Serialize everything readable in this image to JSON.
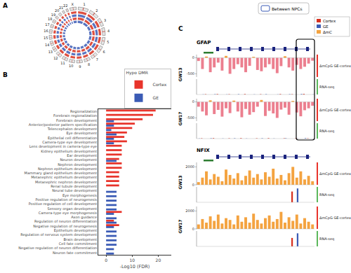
{
  "panel_labels": [
    "A",
    "B",
    "C"
  ],
  "panel_a": {
    "chromosomes": [
      "1",
      "2",
      "3",
      "4",
      "5",
      "6",
      "7",
      "8",
      "9",
      "10",
      "11",
      "12",
      "13",
      "14",
      "15",
      "16",
      "17",
      "18",
      "19",
      "20",
      "21",
      "22",
      "X"
    ],
    "sizes_mb": [
      249,
      243,
      198,
      191,
      181,
      171,
      159,
      146,
      141,
      135,
      135,
      133,
      115,
      107,
      102,
      90,
      81,
      78,
      59,
      63,
      48,
      51,
      155
    ],
    "ring_colors": [
      "#d7301f",
      "#3b5bb5",
      "#d7301f",
      "#3b5bb5"
    ]
  },
  "chart_data": {
    "type": "bar",
    "orientation": "horizontal",
    "categories": [
      "Regionalization",
      "Forebrain regionalization",
      "Forebrain development",
      "Anterior/posterior pattern specification",
      "Telencephalon development",
      "Eye development",
      "Epithelial cell differentiation",
      "Camera-type eye development",
      "Lens development in camera-type eye",
      "Kidney epithelium development",
      "Ear development",
      "Neuron development",
      "Nephron development",
      "Nephron epithelium development",
      "Mammary gland epithelium development",
      "Metanephric epithelium development",
      "Metanephric nephron development",
      "Renal tubule development",
      "Neural tube development",
      "Eye morphogenesis",
      "Positive regulation of neurogenesis",
      "Positive regulation of cell development",
      "Sensory organ development",
      "Camera-type eye morphogenesis",
      "Axon guidance",
      "Regulation of neuron differentiation",
      "Negative regulation of neurogenesis",
      "Epithelium development",
      "Regulation of nervous system development",
      "Brain development",
      "Cell fate commitment",
      "Negative regulation of neuron differentiation",
      "Neuron fate commitment"
    ],
    "series": [
      {
        "name": "Cortex",
        "color": "#e8342b",
        "values": [
          19,
          18,
          14,
          11,
          10,
          8,
          7,
          8,
          6,
          6,
          6,
          5,
          6,
          6,
          5,
          5,
          5,
          5,
          null,
          null,
          null,
          null,
          null,
          6,
          null,
          3,
          5,
          null,
          null,
          null,
          null,
          null,
          null
        ]
      },
      {
        "name": "GE",
        "color": "#3b5bb5",
        "values": [
          null,
          null,
          3,
          3,
          2,
          4,
          3,
          3,
          null,
          null,
          null,
          4,
          null,
          null,
          null,
          null,
          null,
          null,
          4,
          4,
          4,
          4,
          4,
          3,
          4,
          4,
          3,
          4,
          4,
          4,
          4,
          3,
          3
        ]
      }
    ],
    "xlabel": "-Log10 (FDR)",
    "xlim": [
      -3,
      25
    ],
    "xticks": [
      0,
      10,
      20
    ],
    "legend": "top-right",
    "legend_title": "Hypo DMR"
  },
  "panel_c": {
    "box_legend": "Between NPCs",
    "color_legend": [
      {
        "label": "Cortex",
        "color": "#d7301f"
      },
      {
        "label": "GE",
        "color": "#3b5bb5"
      },
      {
        "label": "ΔmC",
        "color": "#f4a340"
      }
    ],
    "sections": [
      {
        "gene": "GFAP",
        "highlight": true,
        "groups": [
          {
            "label": "GW13",
            "tracks": [
              {
                "label": "ΔmCpG GE-cortex",
                "kind": "methylation",
                "label_color": "#e8342b",
                "positive_color": "#f4a340",
                "negative_color": "#ec7f8f",
                "ylim": [
                  -600,
                  100
                ],
                "yticks": [
                  -500,
                  0
                ],
                "values": [
                  -100,
                  -350,
                  40,
                  -450,
                  -300,
                  -150,
                  -400,
                  60,
                  -500,
                  -350,
                  -200,
                  -300,
                  -450,
                  -250,
                  30,
                  -380,
                  -420,
                  -300,
                  -200,
                  -350,
                  -480,
                  -260,
                  50,
                  -300,
                  -400,
                  -220,
                  -350,
                  -280,
                  -180,
                  -90
                ]
              },
              {
                "label": "RNA-seq",
                "kind": "rna",
                "label_color": "#5cb85c",
                "ylim": [
                  0,
                  100
                ],
                "series": [
                  {
                    "color": "#d7301f",
                    "values": [
                      0,
                      0,
                      2,
                      0,
                      0,
                      3,
                      0,
                      0,
                      2,
                      0,
                      0,
                      0,
                      3,
                      0,
                      0,
                      0,
                      2,
                      0,
                      0,
                      0,
                      0,
                      3,
                      0,
                      0,
                      2,
                      0,
                      0,
                      4,
                      0,
                      0
                    ]
                  },
                  {
                    "color": "#3b5bb5",
                    "values": [
                      0,
                      1,
                      0,
                      0,
                      2,
                      0,
                      0,
                      1,
                      0,
                      0,
                      2,
                      0,
                      0,
                      0,
                      1,
                      0,
                      0,
                      2,
                      0,
                      0,
                      1,
                      0,
                      0,
                      2,
                      0,
                      0,
                      3,
                      0,
                      0,
                      1
                    ]
                  }
                ]
              }
            ]
          },
          {
            "label": "GW17",
            "tracks": [
              {
                "label": "ΔmCpG GE-cortex",
                "kind": "methylation",
                "label_color": "#e8342b",
                "positive_color": "#f4a340",
                "negative_color": "#ec7f8f",
                "ylim": [
                  -600,
                  100
                ],
                "yticks": [
                  -500,
                  0
                ],
                "values": [
                  -150,
                  -300,
                  -420,
                  50,
                  -380,
                  -250,
                  -460,
                  -200,
                  -350,
                  40,
                  -300,
                  -480,
                  -220,
                  -400,
                  -320,
                  -150,
                  60,
                  -440,
                  -280,
                  -360,
                  -500,
                  -240,
                  -180,
                  -400,
                  30,
                  -330,
                  -450,
                  -260,
                  -200,
                  -120
                ]
              },
              {
                "label": "RNA-seq",
                "kind": "rna",
                "label_color": "#5cb85c",
                "ylim": [
                  0,
                  100
                ],
                "series": [
                  {
                    "color": "#d7301f",
                    "values": [
                      0,
                      2,
                      0,
                      0,
                      3,
                      0,
                      0,
                      0,
                      2,
                      0,
                      0,
                      3,
                      0,
                      0,
                      0,
                      2,
                      0,
                      0,
                      3,
                      0,
                      0,
                      0,
                      2,
                      0,
                      0,
                      3,
                      0,
                      0,
                      2,
                      0
                    ]
                  },
                  {
                    "color": "#3b5bb5",
                    "values": [
                      1,
                      0,
                      0,
                      2,
                      0,
                      0,
                      1,
                      0,
                      0,
                      2,
                      0,
                      0,
                      1,
                      0,
                      0,
                      0,
                      2,
                      0,
                      0,
                      1,
                      0,
                      0,
                      2,
                      0,
                      0,
                      1,
                      0,
                      3,
                      0,
                      0
                    ]
                  }
                ]
              }
            ]
          }
        ]
      },
      {
        "gene": "NFIX",
        "highlight": false,
        "groups": [
          {
            "label": "GW13",
            "tracks": [
              {
                "label": "ΔmCpG GE-cortex",
                "kind": "methylation",
                "label_color": "#e8342b",
                "positive_color": "#f4a340",
                "negative_color": "#ec7f8f",
                "ylim": [
                  0,
                  2500
                ],
                "yticks": [
                  0,
                  2000
                ],
                "values": [
                  300,
                  800,
                  1500,
                  600,
                  1200,
                  900,
                  400,
                  1700,
                  1100,
                  700,
                  1300,
                  500,
                  1000,
                  1600,
                  800,
                  1200,
                  600,
                  1400,
                  900,
                  1800,
                  700,
                  1100,
                  500,
                  1300,
                  2000,
                  800,
                  1500,
                  600,
                  1000,
                  400
                ]
              },
              {
                "label": "RNA-seq",
                "kind": "rna",
                "label_color": "#5cb85c",
                "ylim": [
                  0,
                  100
                ],
                "series": [
                  {
                    "color": "#d7301f",
                    "values": [
                      0,
                      0,
                      0,
                      0,
                      0,
                      0,
                      0,
                      0,
                      0,
                      0,
                      0,
                      0,
                      0,
                      0,
                      0,
                      0,
                      0,
                      0,
                      0,
                      0,
                      0,
                      0,
                      0,
                      0,
                      70,
                      0,
                      0,
                      0,
                      0,
                      0
                    ]
                  },
                  {
                    "color": "#3b5bb5",
                    "values": [
                      0,
                      0,
                      0,
                      0,
                      0,
                      0,
                      0,
                      0,
                      0,
                      0,
                      0,
                      0,
                      0,
                      0,
                      0,
                      0,
                      0,
                      0,
                      0,
                      0,
                      0,
                      0,
                      0,
                      0,
                      0,
                      90,
                      0,
                      0,
                      0,
                      0
                    ]
                  }
                ]
              }
            ]
          },
          {
            "label": "GW17",
            "tracks": [
              {
                "label": "ΔmCpG GE-cortex",
                "kind": "methylation",
                "label_color": "#e8342b",
                "positive_color": "#f4a340",
                "negative_color": "#ec7f8f",
                "ylim": [
                  0,
                  2500
                ],
                "yticks": [
                  0,
                  2000
                ],
                "values": [
                  500,
                  1100,
                  700,
                  1400,
                  900,
                  1600,
                  600,
                  1200,
                  1000,
                  500,
                  1500,
                  800,
                  1300,
                  700,
                  1700,
                  1000,
                  600,
                  1200,
                  1500,
                  800,
                  1100,
                  1900,
                  700,
                  1300,
                  900,
                  1600,
                  600,
                  1200,
                  800,
                  500
                ]
              },
              {
                "label": "RNA-seq",
                "kind": "rna",
                "label_color": "#5cb85c",
                "ylim": [
                  0,
                  100
                ],
                "series": [
                  {
                    "color": "#d7301f",
                    "values": [
                      0,
                      0,
                      0,
                      0,
                      0,
                      0,
                      0,
                      0,
                      0,
                      0,
                      0,
                      0,
                      0,
                      0,
                      0,
                      0,
                      0,
                      0,
                      0,
                      0,
                      0,
                      0,
                      0,
                      0,
                      55,
                      0,
                      0,
                      0,
                      0,
                      0
                    ]
                  },
                  {
                    "color": "#3b5bb5",
                    "values": [
                      0,
                      0,
                      0,
                      0,
                      0,
                      0,
                      0,
                      0,
                      0,
                      0,
                      0,
                      0,
                      0,
                      0,
                      0,
                      0,
                      0,
                      0,
                      0,
                      0,
                      0,
                      0,
                      0,
                      0,
                      0,
                      85,
                      0,
                      0,
                      0,
                      0
                    ]
                  }
                ]
              }
            ]
          }
        ]
      }
    ]
  }
}
